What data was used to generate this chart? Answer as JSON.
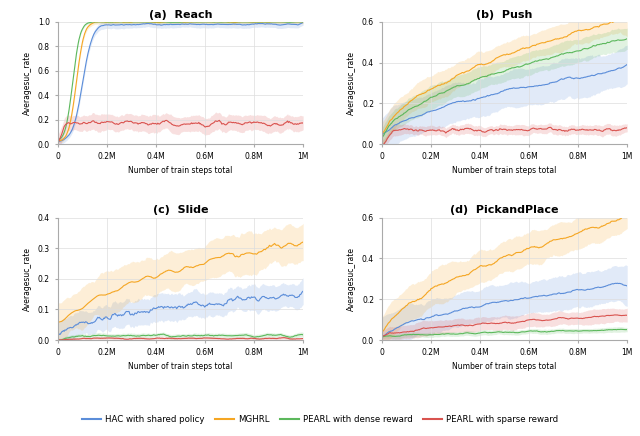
{
  "colors": {
    "blue": "#5B8DD9",
    "orange": "#F5A623",
    "green": "#5CB85C",
    "red": "#D9534F"
  },
  "fill_alpha": 0.18,
  "n_points": 300,
  "x_max": 1000000,
  "subplots": {
    "reach": {
      "title": "(a)  Reach",
      "ylim": [
        0,
        1.0
      ],
      "yticks": [
        0,
        0.2,
        0.4,
        0.6,
        0.8,
        1.0
      ],
      "ylabel": "Averagesuc_rate"
    },
    "push": {
      "title": "(b)  Push",
      "ylim": [
        0,
        0.6
      ],
      "yticks": [
        0,
        0.2,
        0.4,
        0.6
      ],
      "ylabel": "Averagesuc_rate"
    },
    "slide": {
      "title": "(c)  Slide",
      "ylim": [
        0,
        0.4
      ],
      "yticks": [
        0,
        0.1,
        0.2,
        0.3,
        0.4
      ],
      "ylabel": "Averagesuc_rate"
    },
    "pickandplace": {
      "title": "(d)  PickandPlace",
      "ylim": [
        0,
        0.6
      ],
      "yticks": [
        0,
        0.2,
        0.4,
        0.6
      ],
      "ylabel": "Averagesuc_rate"
    }
  },
  "legend": {
    "blue_label": "HAC with shared policy",
    "orange_label": "MGHRL",
    "green_label": "PEARL with dense reward",
    "red_label": "PEARL with sparse reward"
  },
  "xticks": [
    0,
    200000,
    400000,
    600000,
    800000,
    1000000
  ],
  "xtick_labels": [
    "0",
    "0.2M",
    "0.4M",
    "0.6M",
    "0.8M",
    "1M"
  ]
}
